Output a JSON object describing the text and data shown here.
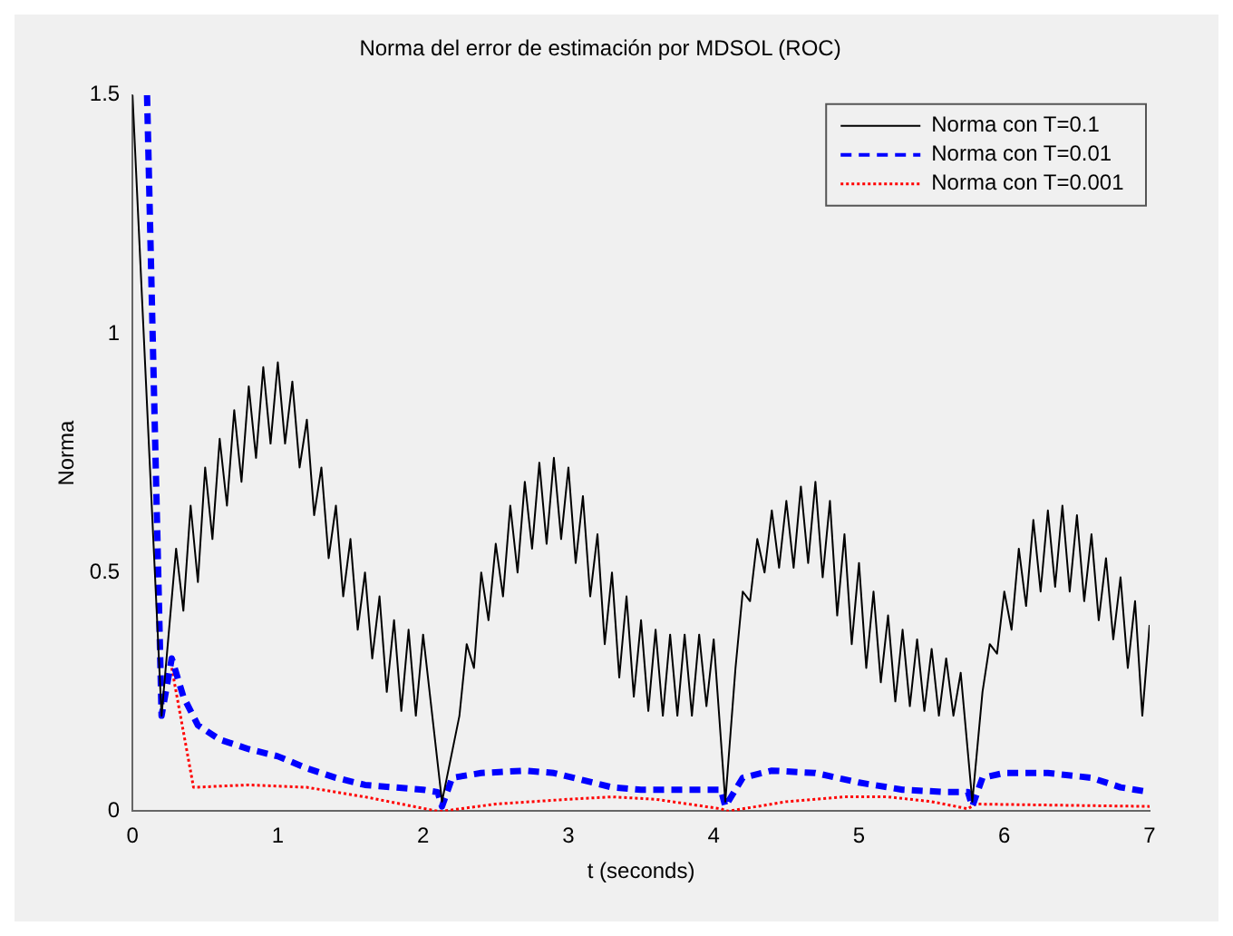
{
  "chart_data": {
    "type": "line",
    "title": "Norma del error de estimación por MDSOL (ROC)",
    "xlabel": "t (seconds)",
    "ylabel": "Norma",
    "xlim": [
      0,
      7
    ],
    "xticks": [
      0,
      1,
      2,
      3,
      4,
      5,
      6,
      7
    ],
    "ylim": [
      0,
      1.5
    ],
    "yticks": [
      0,
      0.5,
      1,
      1.5
    ],
    "grid": false,
    "legend": "top right",
    "marker": "none",
    "series": [
      {
        "name": "Norma con T=0.1",
        "color": "#000000",
        "line_style": "solid",
        "x": [
          0,
          0.2,
          0.3,
          0.35,
          0.4,
          0.45,
          0.5,
          0.55,
          0.6,
          0.65,
          0.7,
          0.75,
          0.8,
          0.85,
          0.9,
          0.95,
          1.0,
          1.05,
          1.1,
          1.15,
          1.2,
          1.25,
          1.3,
          1.35,
          1.4,
          1.45,
          1.5,
          1.55,
          1.6,
          1.65,
          1.7,
          1.75,
          1.8,
          1.85,
          1.9,
          1.95,
          2.0,
          2.13,
          2.25,
          2.3,
          2.35,
          2.4,
          2.45,
          2.5,
          2.55,
          2.6,
          2.65,
          2.7,
          2.75,
          2.8,
          2.85,
          2.9,
          2.95,
          3.0,
          3.05,
          3.1,
          3.15,
          3.2,
          3.25,
          3.3,
          3.35,
          3.4,
          3.45,
          3.5,
          3.55,
          3.6,
          3.65,
          3.7,
          3.75,
          3.8,
          3.85,
          3.9,
          3.95,
          4.0,
          4.08,
          4.15,
          4.2,
          4.25,
          4.3,
          4.35,
          4.4,
          4.45,
          4.5,
          4.55,
          4.6,
          4.65,
          4.7,
          4.75,
          4.8,
          4.85,
          4.9,
          4.95,
          5.0,
          5.05,
          5.1,
          5.15,
          5.2,
          5.25,
          5.3,
          5.35,
          5.4,
          5.45,
          5.5,
          5.55,
          5.6,
          5.65,
          5.7,
          5.78,
          5.85,
          5.9,
          5.95,
          6.0,
          6.05,
          6.1,
          6.15,
          6.2,
          6.25,
          6.3,
          6.35,
          6.4,
          6.45,
          6.5,
          6.55,
          6.6,
          6.65,
          6.7,
          6.75,
          6.8,
          6.85,
          6.9,
          6.95,
          7.0
        ],
        "values": [
          1.5,
          0.2,
          0.55,
          0.42,
          0.64,
          0.48,
          0.72,
          0.57,
          0.78,
          0.64,
          0.84,
          0.69,
          0.89,
          0.74,
          0.93,
          0.77,
          0.94,
          0.77,
          0.9,
          0.72,
          0.82,
          0.62,
          0.72,
          0.53,
          0.64,
          0.45,
          0.57,
          0.38,
          0.5,
          0.32,
          0.45,
          0.25,
          0.4,
          0.21,
          0.38,
          0.2,
          0.37,
          0.02,
          0.2,
          0.35,
          0.3,
          0.5,
          0.4,
          0.56,
          0.45,
          0.64,
          0.5,
          0.69,
          0.55,
          0.73,
          0.56,
          0.74,
          0.57,
          0.72,
          0.52,
          0.66,
          0.45,
          0.58,
          0.35,
          0.5,
          0.28,
          0.45,
          0.24,
          0.4,
          0.21,
          0.38,
          0.2,
          0.37,
          0.2,
          0.37,
          0.2,
          0.37,
          0.22,
          0.36,
          0.02,
          0.3,
          0.46,
          0.44,
          0.57,
          0.5,
          0.63,
          0.51,
          0.65,
          0.51,
          0.68,
          0.52,
          0.69,
          0.49,
          0.65,
          0.41,
          0.58,
          0.35,
          0.52,
          0.3,
          0.46,
          0.27,
          0.41,
          0.23,
          0.38,
          0.22,
          0.36,
          0.21,
          0.34,
          0.2,
          0.32,
          0.2,
          0.29,
          0.02,
          0.25,
          0.35,
          0.33,
          0.46,
          0.38,
          0.55,
          0.43,
          0.61,
          0.46,
          0.63,
          0.47,
          0.64,
          0.46,
          0.62,
          0.44,
          0.58,
          0.4,
          0.53,
          0.36,
          0.49,
          0.3,
          0.44,
          0.2,
          0.39
        ]
      },
      {
        "name": "Norma con T=0.01",
        "color": "#0000ff",
        "line_style": "dashed",
        "x": [
          0.1,
          0.2,
          0.27,
          0.35,
          0.45,
          0.6,
          0.8,
          1.0,
          1.2,
          1.4,
          1.6,
          1.8,
          2.0,
          2.1,
          2.13,
          2.2,
          2.4,
          2.7,
          2.9,
          3.1,
          3.3,
          3.5,
          3.8,
          4.05,
          4.08,
          4.2,
          4.4,
          4.7,
          5.0,
          5.3,
          5.6,
          5.75,
          5.78,
          5.85,
          6.0,
          6.3,
          6.6,
          6.8,
          7.0
        ],
        "values": [
          1.5,
          0.2,
          0.32,
          0.24,
          0.18,
          0.15,
          0.13,
          0.115,
          0.09,
          0.07,
          0.055,
          0.05,
          0.045,
          0.04,
          0.01,
          0.07,
          0.08,
          0.085,
          0.08,
          0.065,
          0.05,
          0.045,
          0.045,
          0.045,
          0.01,
          0.07,
          0.085,
          0.08,
          0.06,
          0.045,
          0.04,
          0.04,
          0.01,
          0.07,
          0.08,
          0.08,
          0.07,
          0.05,
          0.04
        ]
      },
      {
        "name": "Norma con T=0.001",
        "color": "#ff0000",
        "line_style": "dotted",
        "x": [
          0.27,
          0.42,
          0.8,
          1.2,
          1.6,
          2.1,
          2.13,
          2.5,
          3.0,
          3.3,
          3.6,
          4.05,
          4.1,
          4.5,
          4.9,
          5.2,
          5.5,
          5.75,
          5.8,
          6.5,
          7.0
        ],
        "values": [
          0.3,
          0.05,
          0.055,
          0.05,
          0.03,
          0.0,
          0.0,
          0.015,
          0.025,
          0.03,
          0.025,
          0.005,
          0.0,
          0.02,
          0.03,
          0.03,
          0.02,
          0.005,
          0.015,
          0.012,
          0.01
        ]
      }
    ]
  }
}
